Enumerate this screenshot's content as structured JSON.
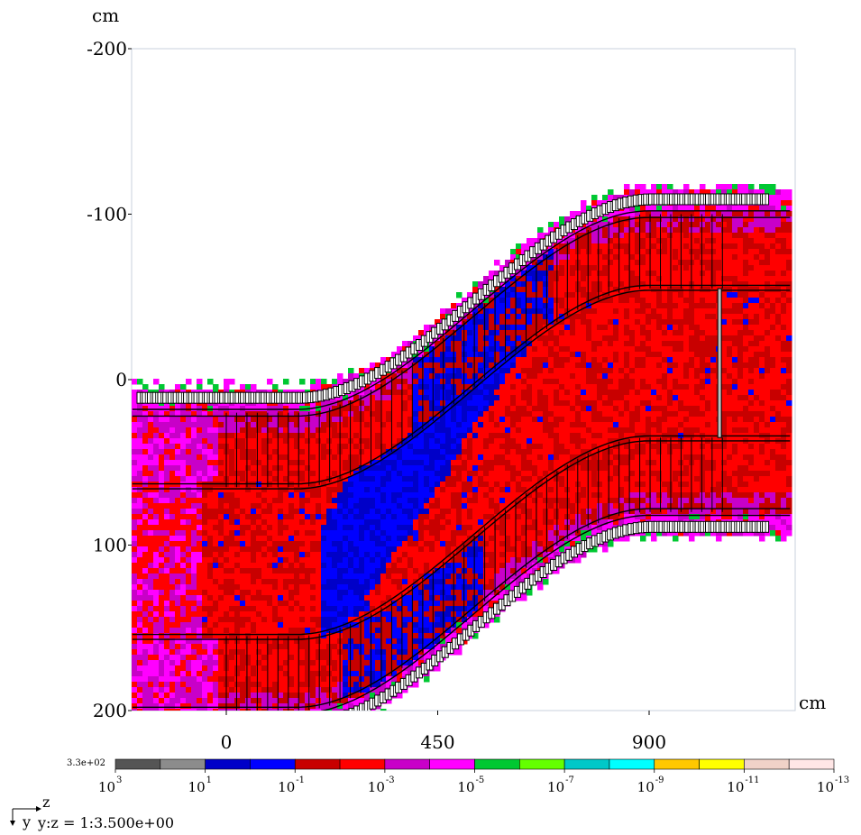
{
  "chart_data": {
    "type": "heatmap",
    "axes": {
      "y_unit": "cm",
      "x_unit": "cm",
      "y_range": [
        -200,
        200
      ],
      "x_range": [
        -120,
        1150
      ],
      "y_ticks": [
        "-200",
        "-100",
        "0",
        "100",
        "200"
      ],
      "y_tick_values": [
        -200,
        -100,
        0,
        100,
        200
      ],
      "x_ticks": [
        "0",
        "450",
        "900"
      ],
      "x_tick_values": [
        0,
        450,
        900
      ],
      "y_inverted": true
    },
    "geometry": {
      "z_start": -200,
      "bend_start": 150,
      "bend_end": 900,
      "z_end": 1200,
      "upstream_center": 110,
      "downstream_center": -10,
      "inner_halfwidth": 45,
      "outer_halfwidth": 90,
      "shield_halfwidth": 105,
      "segment_spacing": 22,
      "window_z": 1050
    },
    "colorbar": {
      "max_label": "3.3e+02",
      "colors": [
        "#555555",
        "#8c8c8c",
        "#0000c8",
        "#0000ff",
        "#c80000",
        "#ff0000",
        "#c800c8",
        "#ff00ff",
        "#00c832",
        "#64ff00",
        "#00c8c8",
        "#00ffff",
        "#ffc800",
        "#ffff00",
        "#f0d2c8",
        "#ffe6e6"
      ],
      "labels": [
        {
          "base": "10",
          "exp": "3"
        },
        {
          "base": "10",
          "exp": "1"
        },
        {
          "base": "10",
          "exp": "-1"
        },
        {
          "base": "10",
          "exp": "-3"
        },
        {
          "base": "10",
          "exp": "-5"
        },
        {
          "base": "10",
          "exp": "-7"
        },
        {
          "base": "10",
          "exp": "-9"
        },
        {
          "base": "10",
          "exp": "-11"
        },
        {
          "base": "10",
          "exp": "-13"
        }
      ]
    },
    "orientation": {
      "horizontal": "z",
      "vertical": "y",
      "scale_text": "y:z = 1:3.500e+00"
    }
  }
}
